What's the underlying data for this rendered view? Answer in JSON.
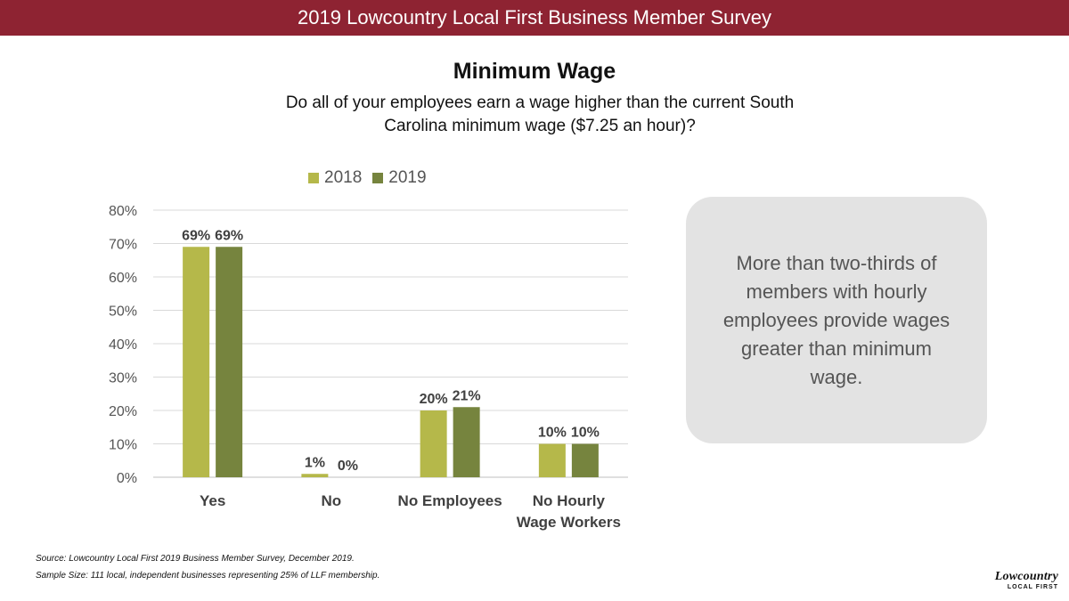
{
  "banner": {
    "text": "2019 Lowcountry Local First Business Member Survey"
  },
  "title": "Minimum Wage",
  "subtitle": "Do all of your employees earn a wage higher than the current South Carolina minimum wage ($7.25 an hour)?",
  "callout": "More than two-thirds of members with hourly employees provide wages greater than minimum wage.",
  "source": {
    "line1": "Source: Lowcountry Local First 2019 Business Member Survey, December 2019.",
    "line2": "Sample Size: 111 local, independent businesses representing 25% of LLF membership."
  },
  "logo": {
    "line1": "Lowcountry",
    "line2": "LOCAL FIRST"
  },
  "colors": {
    "banner": "#8e2332",
    "series2018": "#b5b84a",
    "series2019": "#76843e",
    "callout_bg": "#e3e3e3"
  },
  "chart_data": {
    "type": "bar",
    "title": "",
    "xlabel": "",
    "ylabel": "",
    "categories": [
      [
        "Yes"
      ],
      [
        "No"
      ],
      [
        "No Employees"
      ],
      [
        "No Hourly",
        "Wage Workers"
      ]
    ],
    "series": [
      {
        "name": "2018",
        "values": [
          69,
          1,
          20,
          10
        ],
        "color": "#b5b84a",
        "labels": [
          "69%",
          "1%",
          "20%",
          "10%"
        ]
      },
      {
        "name": "2019",
        "values": [
          69,
          0,
          21,
          10
        ],
        "color": "#76843e",
        "labels": [
          "69%",
          "0%",
          "21%",
          "10%"
        ]
      }
    ],
    "ylim": [
      0,
      80
    ],
    "yticks": [
      0,
      10,
      20,
      30,
      40,
      50,
      60,
      70,
      80
    ],
    "ytick_labels": [
      "0%",
      "10%",
      "20%",
      "30%",
      "40%",
      "50%",
      "60%",
      "70%",
      "80%"
    ],
    "grid": true,
    "legend": "top"
  }
}
